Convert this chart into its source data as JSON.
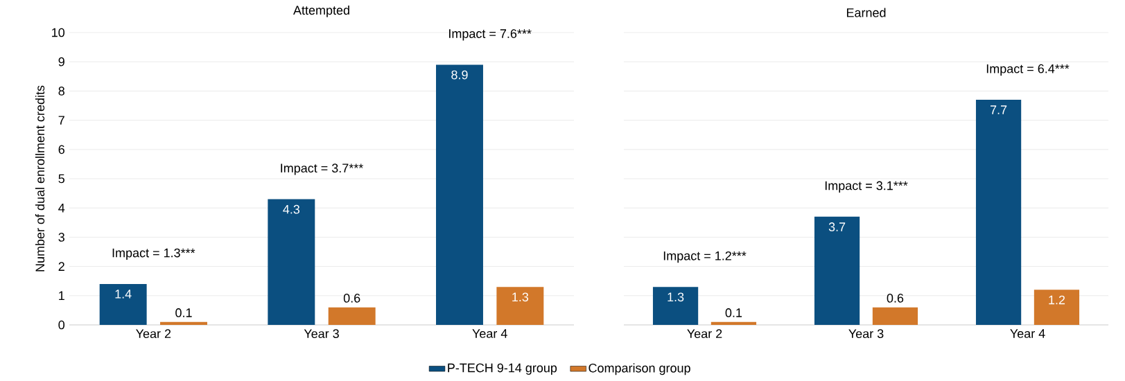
{
  "chart_data": [
    {
      "type": "bar",
      "title": "Attempted",
      "ylabel": "Number of dual enrollment credits",
      "categories": [
        "Year 2",
        "Year 3",
        "Year 4"
      ],
      "series": [
        {
          "name": "P-TECH 9-14 group",
          "color": "#0b4f80",
          "values": [
            1.4,
            4.3,
            8.9
          ]
        },
        {
          "name": "Comparison group",
          "color": "#d2782a",
          "values": [
            0.1,
            0.6,
            1.3
          ]
        }
      ],
      "ylim": [
        0,
        10
      ],
      "yticks": [
        0,
        1,
        2,
        3,
        4,
        5,
        6,
        7,
        8,
        9,
        10
      ],
      "grid": "y",
      "data_labels": true,
      "legend": "bottom",
      "annotations": [
        "Impact = 1.3***",
        "Impact = 3.7***",
        "Impact = 7.6***"
      ]
    },
    {
      "type": "bar",
      "title": "Earned",
      "categories": [
        "Year 2",
        "Year 3",
        "Year 4"
      ],
      "series": [
        {
          "color": "#0b4f80",
          "values": [
            1.3,
            3.7,
            7.7
          ]
        },
        {
          "color": "#d2782a",
          "values": [
            0.1,
            0.6,
            1.2
          ]
        }
      ],
      "ylim": [
        0,
        10
      ],
      "yticks": [
        0,
        1,
        2,
        3,
        4,
        5,
        6,
        7,
        8,
        9,
        10
      ],
      "grid": "y",
      "data_labels": true,
      "tick_labels": "x",
      "annotations": [
        "Impact = 1.2***",
        "Impact = 3.1***",
        "Impact = 6.4***"
      ]
    }
  ]
}
